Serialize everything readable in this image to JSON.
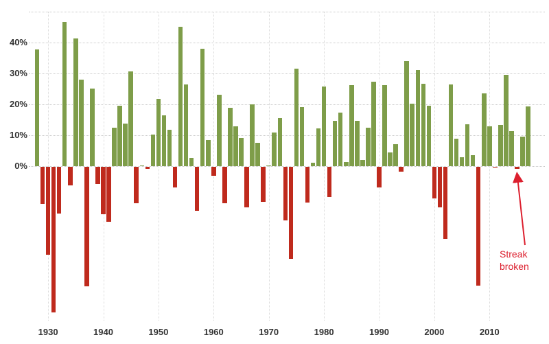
{
  "chart_data": {
    "type": "bar",
    "title": "",
    "xlabel": "",
    "ylabel": "",
    "grid": true,
    "legend": "none",
    "x_range": [
      1928,
      2017
    ],
    "ylim": [
      -50,
      52
    ],
    "y_ticks": [
      0,
      10,
      20,
      30,
      40
    ],
    "y_tick_labels": [
      "0%",
      "10%",
      "20%",
      "30%",
      "40%"
    ],
    "grid_y": [
      0,
      10,
      20,
      30,
      40,
      50
    ],
    "x_ticks": [
      1930,
      1940,
      1950,
      1960,
      1970,
      1980,
      1990,
      2000,
      2010
    ],
    "years": [
      1928,
      1929,
      1930,
      1931,
      1932,
      1933,
      1934,
      1935,
      1936,
      1937,
      1938,
      1939,
      1940,
      1941,
      1942,
      1943,
      1944,
      1945,
      1946,
      1947,
      1948,
      1949,
      1950,
      1951,
      1952,
      1953,
      1954,
      1955,
      1956,
      1957,
      1958,
      1959,
      1960,
      1961,
      1962,
      1963,
      1964,
      1965,
      1966,
      1967,
      1968,
      1969,
      1970,
      1971,
      1972,
      1973,
      1974,
      1975,
      1976,
      1977,
      1978,
      1979,
      1980,
      1981,
      1982,
      1983,
      1984,
      1985,
      1986,
      1987,
      1988,
      1989,
      1990,
      1991,
      1992,
      1993,
      1994,
      1995,
      1996,
      1997,
      1998,
      1999,
      2000,
      2001,
      2002,
      2003,
      2004,
      2005,
      2006,
      2007,
      2008,
      2009,
      2010,
      2011,
      2012,
      2013,
      2014,
      2015,
      2016,
      2017
    ],
    "values": [
      37.88,
      -11.91,
      -28.48,
      -47.07,
      -15.15,
      46.59,
      -5.94,
      41.37,
      27.92,
      -38.59,
      25.21,
      -5.45,
      -15.29,
      -17.86,
      12.43,
      19.45,
      13.8,
      30.72,
      -11.87,
      0.0,
      -0.65,
      10.26,
      21.78,
      16.46,
      11.78,
      -6.62,
      45.02,
      26.4,
      2.62,
      -14.31,
      38.06,
      8.48,
      -2.97,
      23.13,
      -11.81,
      18.89,
      12.97,
      9.06,
      -13.09,
      20.09,
      7.66,
      -11.36,
      0.1,
      10.79,
      15.63,
      -17.37,
      -29.72,
      31.55,
      19.15,
      -11.5,
      1.06,
      12.31,
      25.77,
      -9.73,
      14.76,
      17.27,
      1.4,
      26.33,
      14.62,
      2.03,
      12.4,
      27.25,
      -6.56,
      26.31,
      4.46,
      7.06,
      -1.54,
      34.11,
      20.26,
      31.01,
      26.67,
      19.53,
      -10.14,
      -13.04,
      -23.37,
      26.38,
      8.99,
      3.0,
      13.62,
      3.53,
      -38.49,
      23.45,
      12.78,
      -0.003,
      13.41,
      29.6,
      11.39,
      -0.73,
      9.54,
      19.42
    ]
  },
  "annotation": {
    "line1": "Streak",
    "line2": "broken"
  },
  "colors": {
    "positive": "#7e9d49",
    "negative": "#bf2a1d",
    "annotation": "#dc1f2e"
  }
}
